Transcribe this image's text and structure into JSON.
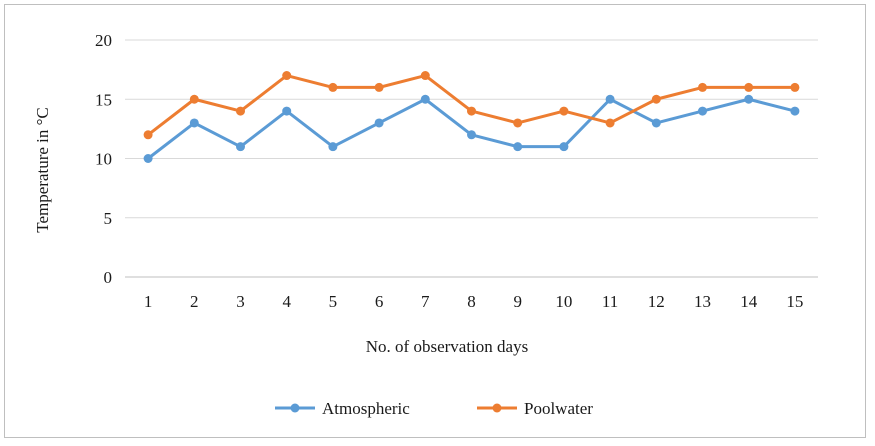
{
  "chart_data": {
    "type": "line",
    "title": "",
    "xlabel": "No. of observation days",
    "ylabel": "Temperature in °C",
    "categories": [
      "1",
      "2",
      "3",
      "4",
      "5",
      "6",
      "7",
      "8",
      "9",
      "10",
      "11",
      "12",
      "13",
      "14",
      "15"
    ],
    "ylim": [
      0,
      20
    ],
    "yticks": [
      "0",
      "5",
      "10",
      "15",
      "20"
    ],
    "grid": true,
    "legend_position": "bottom",
    "series": [
      {
        "name": "Atmospheric",
        "color": "#5b9bd5",
        "values": [
          10,
          13,
          11,
          14,
          11,
          13,
          15,
          12,
          11,
          11,
          15,
          13,
          14,
          15,
          14
        ]
      },
      {
        "name": "Poolwater",
        "color": "#ed7d31",
        "values": [
          12,
          15,
          14,
          17,
          16,
          16,
          17,
          14,
          13,
          14,
          13,
          15,
          16,
          16,
          16
        ]
      }
    ],
    "legend": [
      {
        "label": "Atmospheric",
        "display": "Atmospheric"
      },
      {
        "label": "Poolwater",
        "display": "Poolwater"
      }
    ]
  }
}
